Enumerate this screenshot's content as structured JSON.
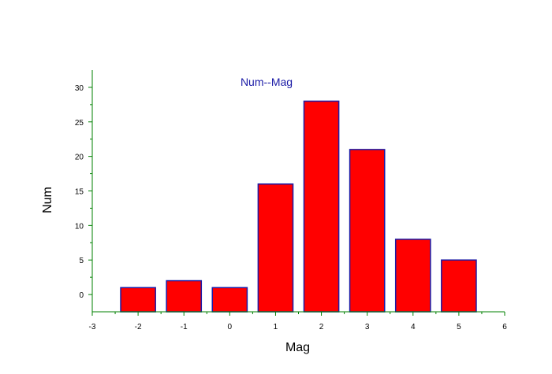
{
  "chart_data": {
    "type": "bar",
    "title": "Num--Mag",
    "xlabel": "Mag",
    "ylabel": "Num",
    "x": [
      -2,
      -1,
      0,
      1,
      2,
      3,
      4,
      5
    ],
    "values": [
      1,
      2,
      1,
      16,
      28,
      21,
      8,
      5
    ],
    "xlim": [
      -3,
      6
    ],
    "ylim": [
      -2.5,
      32.5
    ],
    "x_ticks": [
      -3,
      -2,
      -1,
      0,
      1,
      2,
      3,
      4,
      5,
      6
    ],
    "y_ticks": [
      0,
      5,
      10,
      15,
      20,
      25,
      30
    ],
    "bar_color": "#ff0000",
    "bar_edge_color": "#1a1aa6",
    "axis_color": "#008000",
    "title_color": "#1a1aa6",
    "grid": false,
    "legend": "none"
  }
}
